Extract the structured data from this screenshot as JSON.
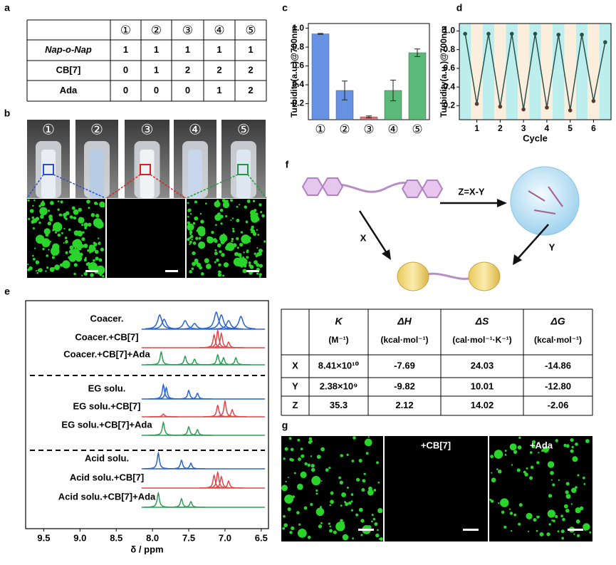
{
  "panel_a": {
    "label": "a",
    "header": [
      "①",
      "②",
      "③",
      "④",
      "⑤"
    ],
    "rows": [
      {
        "name": "Nap-o-Nap",
        "values": [
          1,
          1,
          1,
          1,
          1
        ]
      },
      {
        "name": "CB[7]",
        "values": [
          0,
          1,
          2,
          2,
          2
        ]
      },
      {
        "name": "Ada",
        "values": [
          0,
          0,
          0,
          1,
          2
        ]
      }
    ]
  },
  "panel_b": {
    "label": "b",
    "vials": [
      "①",
      "②",
      "③",
      "④",
      "⑤"
    ]
  },
  "panel_c": {
    "label": "c",
    "type": "bar",
    "y_label": "Turbidity(a.u.)@700nm",
    "categories": [
      "①",
      "②",
      "③",
      "④",
      "⑤"
    ],
    "values": [
      0.94,
      0.34,
      0.06,
      0.34,
      0.74
    ],
    "errors": [
      0.005,
      0.1,
      0.01,
      0.11,
      0.04
    ],
    "colors": [
      "#4d7fe0",
      "#4d7fe0",
      "#e05a5a",
      "#3fae63",
      "#3fae63"
    ],
    "ylim": [
      0.03,
      1.05
    ],
    "yticks": [
      0.2,
      0.4,
      0.6,
      0.8,
      {
        "value": 1,
        "label": "1.0"
      }
    ]
  },
  "panel_d": {
    "label": "d",
    "type": "line",
    "y_label": "Turbidity(a.u.)@700nm",
    "x_label": "Cycle",
    "x": [
      0.5,
      1,
      1.5,
      2,
      2.5,
      3,
      3.5,
      4,
      4.5,
      5,
      5.5,
      6,
      6.5
    ],
    "values": [
      0.97,
      0.22,
      0.97,
      0.19,
      0.97,
      0.16,
      0.97,
      0.18,
      0.96,
      0.15,
      0.96,
      0.25,
      0.88
    ],
    "color": "#2d4f4a",
    "band_colors": [
      "#bdeeee",
      "#fbeedd"
    ],
    "xlim": [
      0.25,
      6.75
    ],
    "xticks": [
      1,
      2,
      3,
      4,
      5,
      6
    ],
    "ylim": [
      0.05,
      1.08
    ],
    "yticks": [
      0.2,
      0.4,
      0.6,
      0.8,
      {
        "value": 1,
        "label": "1.0"
      }
    ]
  },
  "panel_e": {
    "label": "e",
    "type": "nmr",
    "x_label": "δ / ppm",
    "xlim": [
      9.75,
      6.4
    ],
    "xticks": [
      9.5,
      {
        "value": 9,
        "label": "9.0"
      },
      8.5,
      {
        "value": 8,
        "label": "8.0"
      },
      7.5,
      {
        "value": 7,
        "label": "7.0"
      },
      6.5
    ],
    "spectra": [
      {
        "name": "Coacer.",
        "color": "#2a63d1",
        "peaks": [
          [
            7.9,
            20
          ],
          [
            7.84,
            14
          ],
          [
            7.55,
            12
          ],
          [
            7.42,
            8
          ],
          [
            7.12,
            24
          ],
          [
            7.05,
            20
          ],
          [
            6.95,
            12
          ],
          [
            6.78,
            18
          ]
        ]
      },
      {
        "name": "Coacer.+CB[7]",
        "color": "#e0484a",
        "peaks": [
          [
            7.15,
            18
          ],
          [
            7.1,
            24
          ],
          [
            7.05,
            20
          ],
          [
            6.95,
            8
          ]
        ]
      },
      {
        "name": "Coacer.+CB[7]+Ada",
        "color": "#2f9e55",
        "peaks": [
          [
            7.88,
            18
          ],
          [
            7.55,
            12
          ],
          [
            7.42,
            8
          ],
          [
            7.1,
            14
          ],
          [
            7.02,
            10
          ],
          [
            6.85,
            10
          ]
        ]
      },
      {
        "name": "EG solu.",
        "color": "#2a63d1",
        "peaks": [
          [
            7.85,
            20
          ],
          [
            7.81,
            16
          ],
          [
            7.5,
            12
          ],
          [
            7.38,
            8
          ]
        ]
      },
      {
        "name": "EG solu.+CB[7]",
        "color": "#e0484a",
        "peaks": [
          [
            7.1,
            16
          ],
          [
            7.0,
            22
          ],
          [
            6.9,
            10
          ],
          [
            7.85,
            4
          ]
        ]
      },
      {
        "name": "EG solu.+CB[7]+Ada",
        "color": "#2f9e55",
        "peaks": [
          [
            7.85,
            18
          ],
          [
            7.5,
            12
          ],
          [
            7.38,
            8
          ]
        ]
      },
      {
        "name": "Acid solu.",
        "color": "#2a63d1",
        "peaks": [
          [
            7.92,
            22
          ],
          [
            7.6,
            12
          ],
          [
            7.47,
            8
          ]
        ]
      },
      {
        "name": "Acid solu.+CB[7]",
        "color": "#e0484a",
        "peaks": [
          [
            7.15,
            18
          ],
          [
            7.1,
            22
          ],
          [
            7.05,
            16
          ],
          [
            6.95,
            10
          ]
        ]
      },
      {
        "name": "Acid solu.+CB[7]+Ada",
        "color": "#2f9e55",
        "peaks": [
          [
            7.92,
            20
          ],
          [
            7.6,
            12
          ],
          [
            7.47,
            8
          ]
        ]
      }
    ]
  },
  "panel_f": {
    "label": "f",
    "arrows": {
      "z": "Z=X-Y",
      "x": "X",
      "y": "Y"
    },
    "table": {
      "columns": [
        {
          "symbol": "K",
          "unit": "(M⁻¹)"
        },
        {
          "symbol": "ΔH",
          "unit": "(kcal·mol⁻¹)"
        },
        {
          "symbol": "ΔS",
          "unit": "(cal·mol⁻¹·K⁻¹)"
        },
        {
          "symbol": "ΔG",
          "unit": "(kcal·mol⁻¹)"
        }
      ],
      "rows": [
        [
          "X",
          "8.41×10¹⁰",
          "-7.69",
          "24.03",
          "-14.86"
        ],
        [
          "Y",
          "2.38×10⁹",
          "-9.82",
          "10.01",
          "-12.80"
        ],
        [
          "Z",
          "35.3",
          "2.12",
          "14.02",
          "-2.06"
        ]
      ]
    }
  },
  "panel_g": {
    "label": "g",
    "captions": [
      "+CB[7]",
      "+Ada"
    ]
  }
}
